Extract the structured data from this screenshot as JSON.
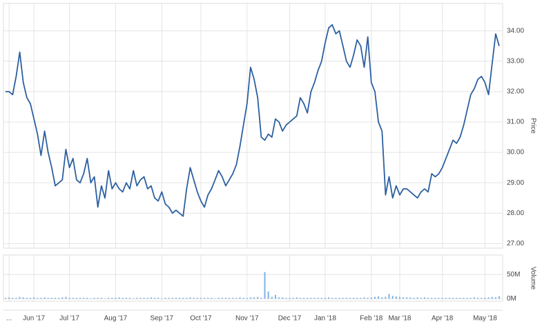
{
  "chart_data": [
    {
      "type": "line",
      "y_axis_label": "Price",
      "color": "#2b5fa0",
      "ylim": [
        26.85,
        34.9
      ],
      "yticks": [
        {
          "value": 27,
          "label": "27.00"
        },
        {
          "value": 28,
          "label": "28.00"
        },
        {
          "value": 29,
          "label": "29.00"
        },
        {
          "value": 30,
          "label": "30.00"
        },
        {
          "value": 31,
          "label": "31.00"
        },
        {
          "value": 32,
          "label": "32.00"
        },
        {
          "value": 33,
          "label": "33.00"
        },
        {
          "value": 34,
          "label": "34.00"
        }
      ],
      "grid": true,
      "values": [
        32.0,
        32.0,
        31.9,
        32.5,
        33.3,
        32.3,
        31.8,
        31.6,
        31.1,
        30.6,
        29.9,
        30.7,
        30.0,
        29.5,
        28.9,
        29.0,
        29.1,
        30.1,
        29.5,
        29.8,
        29.1,
        29.0,
        29.3,
        29.8,
        29.0,
        29.2,
        28.2,
        28.9,
        28.5,
        29.4,
        28.8,
        29.0,
        28.8,
        28.7,
        29.0,
        28.8,
        29.4,
        28.9,
        29.1,
        29.2,
        28.8,
        28.9,
        28.5,
        28.4,
        28.7,
        28.3,
        28.2,
        28.0,
        28.1,
        28.0,
        27.9,
        28.8,
        29.5,
        29.1,
        28.7,
        28.4,
        28.2,
        28.6,
        28.8,
        29.1,
        29.4,
        29.2,
        28.9,
        29.1,
        29.3,
        29.6,
        30.2,
        30.9,
        31.6,
        32.8,
        32.4,
        31.8,
        30.5,
        30.4,
        30.6,
        30.5,
        31.1,
        31.0,
        30.7,
        30.9,
        31.0,
        31.1,
        31.2,
        31.8,
        31.6,
        31.3,
        32.0,
        32.3,
        32.7,
        33.0,
        33.6,
        34.1,
        34.2,
        33.9,
        34.0,
        33.5,
        33.0,
        32.8,
        33.2,
        33.7,
        33.5,
        32.8,
        33.8,
        32.3,
        32.0,
        31.0,
        30.7,
        28.6,
        29.2,
        28.5,
        28.9,
        28.6,
        28.8,
        28.8,
        28.7,
        28.6,
        28.5,
        28.7,
        28.8,
        28.7,
        29.3,
        29.2,
        29.3,
        29.5,
        29.8,
        30.1,
        30.4,
        30.3,
        30.5,
        30.9,
        31.4,
        31.9,
        32.1,
        32.4,
        32.5,
        32.3,
        31.9,
        32.9,
        33.9,
        33.5
      ]
    },
    {
      "type": "bar",
      "y_axis_label": "Volume",
      "color": "#7fb2e5",
      "ylim": [
        -5,
        90
      ],
      "yticks": [
        {
          "value": 0,
          "label": "0M"
        },
        {
          "value": 50,
          "label": "50M"
        }
      ],
      "grid": true,
      "categories": [
        null,
        "...",
        null,
        null,
        null,
        null,
        null,
        null,
        "Jun '17",
        null,
        null,
        null,
        null,
        null,
        null,
        null,
        null,
        null,
        "Jul '17",
        null,
        null,
        null,
        null,
        null,
        null,
        null,
        null,
        null,
        null,
        null,
        null,
        "Aug '17",
        null,
        null,
        null,
        null,
        null,
        null,
        null,
        null,
        null,
        null,
        null,
        null,
        "Sep '17",
        null,
        null,
        null,
        null,
        null,
        null,
        null,
        null,
        null,
        null,
        "Oct '17",
        null,
        null,
        null,
        null,
        null,
        null,
        null,
        null,
        null,
        null,
        null,
        null,
        "Nov '17",
        null,
        null,
        null,
        null,
        null,
        null,
        null,
        null,
        null,
        null,
        null,
        "Dec '17",
        null,
        null,
        null,
        null,
        null,
        null,
        null,
        null,
        null,
        "Jan '18",
        null,
        null,
        null,
        null,
        null,
        null,
        null,
        null,
        null,
        null,
        null,
        null,
        "Feb '18",
        null,
        null,
        null,
        null,
        null,
        null,
        null,
        "Mar '18",
        null,
        null,
        null,
        null,
        null,
        null,
        null,
        null,
        null,
        null,
        null,
        "Apr '18",
        null,
        null,
        null,
        null,
        null,
        null,
        null,
        null,
        null,
        null,
        null,
        "May '18",
        null,
        null,
        null,
        null
      ],
      "values": [
        2,
        3,
        2,
        2,
        4,
        3,
        2,
        2,
        3,
        2,
        2,
        3,
        2,
        2,
        2,
        2,
        3,
        4,
        2,
        2,
        2,
        2,
        2,
        2,
        1,
        2,
        2,
        2,
        1,
        2,
        2,
        2,
        3,
        2,
        2,
        2,
        1,
        2,
        2,
        2,
        2,
        3,
        2,
        2,
        1,
        2,
        2,
        2,
        2,
        2,
        2,
        2,
        3,
        2,
        2,
        2,
        2,
        2,
        2,
        1,
        2,
        2,
        2,
        2,
        2,
        2,
        3,
        2,
        2,
        3,
        3,
        4,
        2,
        55,
        15,
        4,
        8,
        3,
        3,
        2,
        2,
        2,
        3,
        2,
        2,
        2,
        2,
        2,
        2,
        2,
        2,
        3,
        2,
        2,
        2,
        2,
        2,
        2,
        2,
        2,
        2,
        3,
        2,
        3,
        4,
        5,
        3,
        4,
        10,
        6,
        5,
        4,
        3,
        3,
        3,
        2,
        3,
        2,
        3,
        2,
        2,
        2,
        2,
        2,
        2,
        2,
        2,
        2,
        2,
        2,
        2,
        2,
        3,
        2,
        2,
        2,
        3,
        4,
        3,
        5
      ]
    }
  ]
}
